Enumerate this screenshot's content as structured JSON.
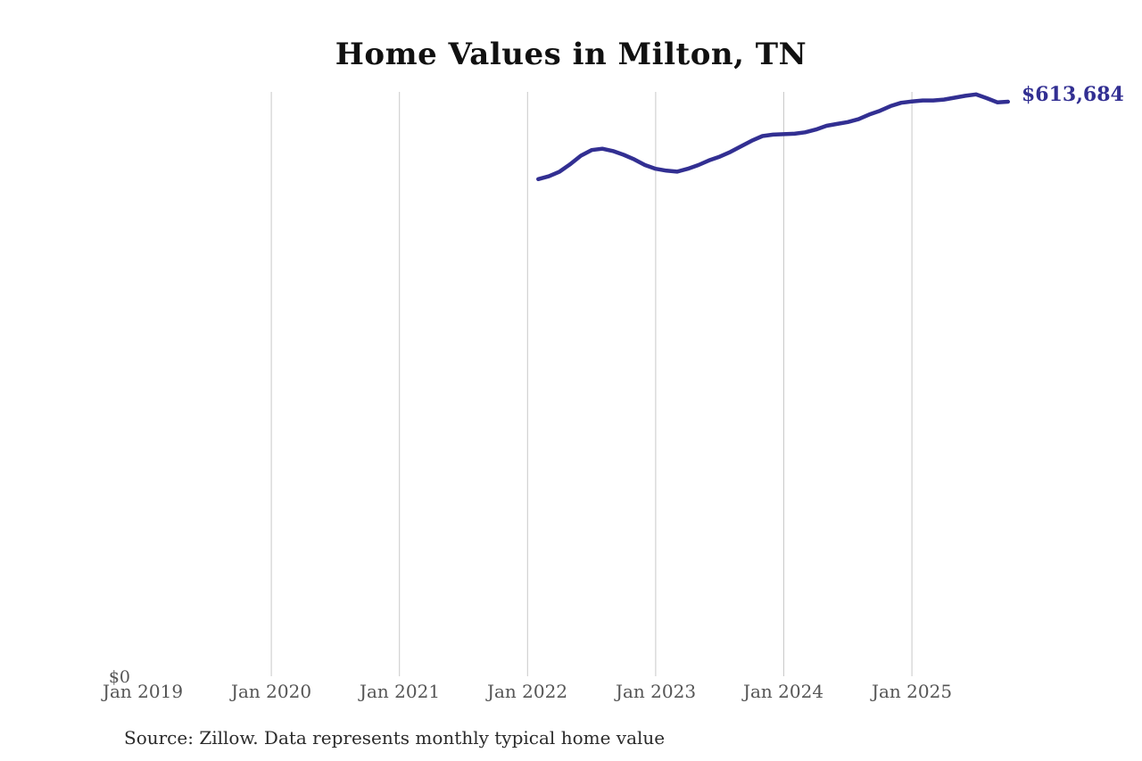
{
  "header": {
    "title": "Home Values in Milton, TN"
  },
  "annotation": {
    "latest_value_label": "$613,684"
  },
  "axes": {
    "y_zero_label": "$0",
    "x_tick_labels": [
      "Jan 2019",
      "Jan 2020",
      "Jan 2021",
      "Jan 2022",
      "Jan 2023",
      "Jan 2024",
      "Jan 2025"
    ]
  },
  "footer": {
    "source_note": "Source: Zillow. Data represents monthly typical home value"
  },
  "colors": {
    "line": "#322f92",
    "grid": "#c9c9c9",
    "tick_text": "#555555",
    "title_text": "#111111",
    "source_text": "#2b2b2b"
  },
  "chart_data": {
    "type": "line",
    "title": "Home Values in Milton, TN",
    "xlabel": "",
    "ylabel": "",
    "legend_position": "none",
    "grid": "vertical gridlines at each January, Jan 2020 through Jan 2025; no gridline at Jan 2019",
    "x_axis_range": [
      "2019-01",
      "2025-12"
    ],
    "x_tick_labels": [
      "Jan 2019",
      "Jan 2020",
      "Jan 2021",
      "Jan 2022",
      "Jan 2023",
      "Jan 2024",
      "Jan 2025"
    ],
    "y_axis": {
      "min": 0,
      "zero_label": "$0",
      "implied_max": 650000
    },
    "end_label": {
      "text": "$613,684",
      "value": 613684
    },
    "source": "Source: Zillow. Data represents monthly typical home value",
    "series": [
      {
        "name": "Monthly typical home value",
        "x": [
          "2022-02",
          "2022-03",
          "2022-04",
          "2022-05",
          "2022-06",
          "2022-07",
          "2022-08",
          "2022-09",
          "2022-10",
          "2022-11",
          "2022-12",
          "2023-01",
          "2023-02",
          "2023-03",
          "2023-04",
          "2023-05",
          "2023-06",
          "2023-07",
          "2023-08",
          "2023-09",
          "2023-10",
          "2023-11",
          "2023-12",
          "2024-01",
          "2024-02",
          "2024-03",
          "2024-04",
          "2024-05",
          "2024-06",
          "2024-07",
          "2024-08",
          "2024-09",
          "2024-10",
          "2024-11",
          "2024-12",
          "2025-01",
          "2025-02",
          "2025-03",
          "2025-04",
          "2025-05",
          "2025-06",
          "2025-07",
          "2025-08",
          "2025-09",
          "2025-10"
        ],
        "values": [
          531000,
          534000,
          539000,
          547000,
          556000,
          562000,
          563500,
          561000,
          557000,
          552000,
          546000,
          542000,
          540000,
          539000,
          542000,
          546000,
          551000,
          555000,
          560000,
          566000,
          572000,
          577000,
          578500,
          579000,
          579500,
          581000,
          584000,
          588000,
          590000,
          592000,
          595000,
          600000,
          604000,
          609000,
          612500,
          614000,
          615000,
          615000,
          616000,
          618000,
          620000,
          621500,
          617500,
          613000,
          613684
        ]
      }
    ]
  }
}
